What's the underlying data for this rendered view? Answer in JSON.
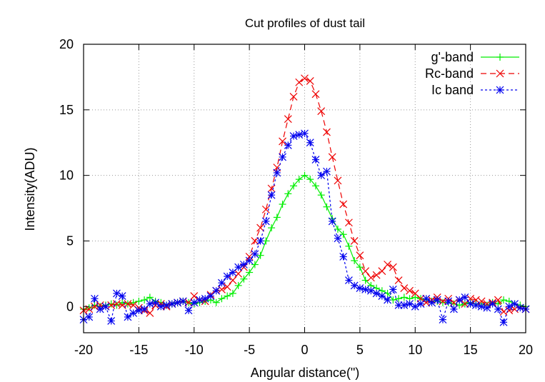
{
  "chart_data": {
    "type": "line",
    "title": "Cut profiles of dust tail",
    "xlabel": "Angular distance(\")",
    "ylabel": "Intensity(ADU)",
    "xlim": [
      -20,
      20
    ],
    "ylim": [
      -2,
      20
    ],
    "xticks": [
      -20,
      -15,
      -10,
      -5,
      0,
      5,
      10,
      15,
      20
    ],
    "yticks": [
      0,
      5,
      10,
      15,
      20
    ],
    "xtick_labels": [
      "-20",
      "-15",
      "-10",
      "-5",
      "0",
      "5",
      "10",
      "15",
      "20"
    ],
    "ytick_labels": [
      "0",
      "5",
      "10",
      "15",
      "20"
    ],
    "grid": true,
    "legend_position": "top-right",
    "series": [
      {
        "name": "g'-band",
        "color": "#00ee00",
        "line_style": "solid",
        "marker": "plus",
        "x": [
          -20,
          -19.5,
          -19,
          -18.5,
          -18,
          -17.5,
          -17,
          -16.5,
          -16,
          -15.5,
          -15,
          -14.5,
          -14,
          -13.5,
          -13,
          -12.5,
          -12,
          -11.5,
          -11,
          -10.5,
          -10,
          -9.5,
          -9,
          -8.5,
          -8,
          -7.5,
          -7,
          -6.5,
          -6,
          -5.5,
          -5,
          -4.5,
          -4,
          -3.5,
          -3,
          -2.5,
          -2,
          -1.5,
          -1,
          -0.5,
          0,
          0.5,
          1,
          1.5,
          2,
          2.5,
          3,
          3.5,
          4,
          4.5,
          5,
          5.5,
          6,
          6.5,
          7,
          7.5,
          8,
          8.5,
          9,
          9.5,
          10,
          10.5,
          11,
          11.5,
          12,
          12.5,
          13,
          13.5,
          14,
          14.5,
          15,
          15.5,
          16,
          16.5,
          17,
          17.5,
          18,
          18.5,
          19,
          19.5,
          20
        ],
        "y": [
          -0.2,
          -0.1,
          0.1,
          0.0,
          0.1,
          0.2,
          0.1,
          0.3,
          0.2,
          0.3,
          0.4,
          0.5,
          0.7,
          0.4,
          0.3,
          0.1,
          0.2,
          0.3,
          0.4,
          0.3,
          0.2,
          0.3,
          0.4,
          0.5,
          0.3,
          0.6,
          0.8,
          1.0,
          1.6,
          2.1,
          2.6,
          3.2,
          3.9,
          5.0,
          6.0,
          6.8,
          7.8,
          8.6,
          9.2,
          9.7,
          10.0,
          9.7,
          9.2,
          8.5,
          7.6,
          6.7,
          5.9,
          5.5,
          4.6,
          3.5,
          3.0,
          2.0,
          1.6,
          1.4,
          1.2,
          1.0,
          0.5,
          0.6,
          0.7,
          0.6,
          0.7,
          0.6,
          0.5,
          0.4,
          0.4,
          0.3,
          0.3,
          0.2,
          0.1,
          0.2,
          0.3,
          0.2,
          0.2,
          0.1,
          0.3,
          0.2,
          0.5,
          0.4,
          0.2,
          0.1,
          0.0
        ]
      },
      {
        "name": "Rc-band",
        "color": "#ee0000",
        "line_style": "dashed",
        "marker": "cross",
        "x": [
          -20,
          -19.5,
          -19,
          -18.5,
          -18,
          -17.5,
          -17,
          -16.5,
          -16,
          -15.5,
          -15,
          -14.5,
          -14,
          -13.5,
          -13,
          -12.5,
          -12,
          -11.5,
          -11,
          -10.5,
          -10,
          -9.5,
          -9,
          -8.5,
          -8,
          -7.5,
          -7,
          -6.5,
          -6,
          -5.5,
          -5,
          -4.5,
          -4,
          -3.5,
          -3,
          -2.5,
          -2,
          -1.5,
          -1,
          -0.5,
          0,
          0.5,
          1,
          1.5,
          2,
          2.5,
          3,
          3.5,
          4,
          4.5,
          5,
          5.5,
          6,
          6.5,
          7,
          7.5,
          8,
          8.5,
          9,
          9.5,
          10,
          10.5,
          11,
          11.5,
          12,
          12.5,
          13,
          13.5,
          14,
          14.5,
          15,
          15.5,
          16,
          16.5,
          17,
          17.5,
          18,
          18.5,
          19,
          19.5,
          20
        ],
        "y": [
          -0.3,
          -0.2,
          0.0,
          0.1,
          0.0,
          0.1,
          0.2,
          0.1,
          0.2,
          0.1,
          -0.1,
          -0.3,
          -0.5,
          0.1,
          0.2,
          0.0,
          0.2,
          0.3,
          0.4,
          0.3,
          0.8,
          0.5,
          0.4,
          0.9,
          1.2,
          1.3,
          1.5,
          2.0,
          2.5,
          3.0,
          3.8,
          5.0,
          6.0,
          7.4,
          9.0,
          10.6,
          12.6,
          14.3,
          16.0,
          17.1,
          17.4,
          17.2,
          16.2,
          14.9,
          13.3,
          11.4,
          9.6,
          7.8,
          6.4,
          5.0,
          3.9,
          2.7,
          2.2,
          2.4,
          2.7,
          3.2,
          3.0,
          2.0,
          1.4,
          1.2,
          1.0,
          0.6,
          0.3,
          0.5,
          0.7,
          0.4,
          0.6,
          0.3,
          0.5,
          0.2,
          0.6,
          0.5,
          0.4,
          0.2,
          0.3,
          0.5,
          -0.4,
          -0.3,
          -0.2,
          -0.1,
          -0.2
        ]
      },
      {
        "name": "Ic band",
        "color": "#0000ee",
        "line_style": "dotted",
        "marker": "asterisk",
        "x": [
          -20,
          -19.5,
          -19,
          -18.5,
          -18,
          -17.5,
          -17,
          -16.5,
          -16,
          -15.5,
          -15,
          -14.5,
          -14,
          -13.5,
          -13,
          -12.5,
          -12,
          -11.5,
          -11,
          -10.5,
          -10,
          -9.5,
          -9,
          -8.5,
          -8,
          -7.5,
          -7,
          -6.5,
          -6,
          -5.5,
          -5,
          -4.5,
          -4,
          -3.5,
          -3,
          -2.5,
          -2,
          -1.5,
          -1,
          -0.5,
          0,
          0.5,
          1,
          1.5,
          2,
          2.5,
          3,
          3.5,
          4,
          4.5,
          5,
          5.5,
          6,
          6.5,
          7,
          7.5,
          8,
          8.5,
          9,
          9.5,
          10,
          10.5,
          11,
          11.5,
          12,
          12.5,
          13,
          13.5,
          14,
          14.5,
          15,
          15.5,
          16,
          16.5,
          17,
          17.5,
          18,
          18.5,
          19,
          19.5,
          20
        ],
        "y": [
          -1.0,
          -0.8,
          0.6,
          -0.2,
          0.0,
          -1.1,
          1.0,
          0.8,
          -0.8,
          -0.5,
          -0.3,
          -0.2,
          0.2,
          0.3,
          0.0,
          0.1,
          0.2,
          0.3,
          0.4,
          -0.3,
          0.3,
          0.5,
          0.6,
          0.8,
          1.2,
          1.8,
          2.3,
          2.6,
          3.0,
          3.2,
          3.5,
          4.0,
          5.0,
          6.5,
          8.5,
          10.2,
          11.4,
          12.3,
          13.0,
          13.1,
          13.2,
          12.5,
          11.2,
          10.0,
          10.3,
          6.5,
          5.2,
          3.8,
          2.0,
          1.6,
          1.4,
          1.3,
          1.2,
          1.0,
          0.8,
          0.5,
          1.3,
          0.1,
          0.1,
          0.2,
          0.0,
          0.2,
          0.6,
          0.3,
          0.5,
          -1.0,
          0.4,
          -0.2,
          0.5,
          0.7,
          0.2,
          0.1,
          0.0,
          -0.1,
          0.2,
          -0.2,
          -1.2,
          0.0,
          0.2,
          -0.1,
          -0.2
        ]
      }
    ]
  }
}
